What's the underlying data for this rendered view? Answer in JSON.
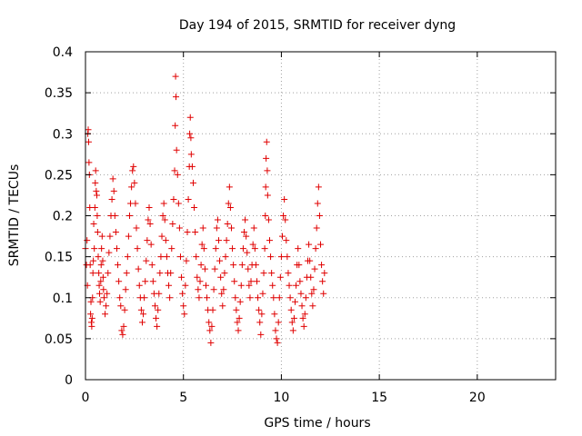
{
  "chart_data": {
    "type": "scatter",
    "title": "Day 194 of 2015, SRMTID for receiver dyng",
    "xlabel": "GPS time / hours",
    "ylabel": "SRMTID / TECUs",
    "xlim": [
      0,
      24
    ],
    "ylim": [
      0,
      0.4
    ],
    "xticks": [
      0,
      5,
      10,
      15,
      20
    ],
    "xtick_labels": [
      "0",
      "5",
      "10",
      "15",
      "20"
    ],
    "yticks": [
      0,
      0.05,
      0.1,
      0.15,
      0.2,
      0.25,
      0.3,
      0.35,
      0.4
    ],
    "ytick_labels": [
      "0",
      "0.05",
      "0.1",
      "0.15",
      "0.2",
      "0.25",
      "0.3",
      "0.35",
      "0.4"
    ],
    "grid": true,
    "marker": "+",
    "color": "#e00000",
    "series": [
      {
        "name": "SRMTID",
        "points": [
          [
            0.0,
            0.16
          ],
          [
            0.05,
            0.14
          ],
          [
            0.08,
            0.17
          ],
          [
            0.1,
            0.115
          ],
          [
            0.12,
            0.3
          ],
          [
            0.14,
            0.305
          ],
          [
            0.16,
            0.29
          ],
          [
            0.18,
            0.265
          ],
          [
            0.2,
            0.25
          ],
          [
            0.22,
            0.21
          ],
          [
            0.24,
            0.14
          ],
          [
            0.26,
            0.08
          ],
          [
            0.28,
            0.095
          ],
          [
            0.3,
            0.07
          ],
          [
            0.32,
            0.065
          ],
          [
            0.34,
            0.075
          ],
          [
            0.36,
            0.1
          ],
          [
            0.38,
            0.13
          ],
          [
            0.4,
            0.145
          ],
          [
            0.42,
            0.19
          ],
          [
            0.45,
            0.16
          ],
          [
            0.48,
            0.21
          ],
          [
            0.5,
            0.24
          ],
          [
            0.52,
            0.255
          ],
          [
            0.55,
            0.23
          ],
          [
            0.58,
            0.225
          ],
          [
            0.6,
            0.2
          ],
          [
            0.62,
            0.18
          ],
          [
            0.65,
            0.15
          ],
          [
            0.68,
            0.13
          ],
          [
            0.7,
            0.115
          ],
          [
            0.72,
            0.105
          ],
          [
            0.75,
            0.095
          ],
          [
            0.78,
            0.12
          ],
          [
            0.8,
            0.14
          ],
          [
            0.82,
            0.16
          ],
          [
            0.85,
            0.175
          ],
          [
            0.88,
            0.145
          ],
          [
            0.9,
            0.125
          ],
          [
            0.92,
            0.11
          ],
          [
            0.95,
            0.1
          ],
          [
            1.0,
            0.08
          ],
          [
            1.05,
            0.09
          ],
          [
            1.1,
            0.105
          ],
          [
            1.15,
            0.13
          ],
          [
            1.2,
            0.155
          ],
          [
            1.25,
            0.175
          ],
          [
            1.3,
            0.2
          ],
          [
            1.35,
            0.22
          ],
          [
            1.4,
            0.245
          ],
          [
            1.45,
            0.23
          ],
          [
            1.5,
            0.2
          ],
          [
            1.55,
            0.18
          ],
          [
            1.6,
            0.16
          ],
          [
            1.65,
            0.14
          ],
          [
            1.7,
            0.12
          ],
          [
            1.75,
            0.1
          ],
          [
            1.8,
            0.09
          ],
          [
            1.85,
            0.06
          ],
          [
            1.9,
            0.055
          ],
          [
            1.95,
            0.065
          ],
          [
            2.0,
            0.085
          ],
          [
            2.05,
            0.11
          ],
          [
            2.1,
            0.13
          ],
          [
            2.15,
            0.15
          ],
          [
            2.2,
            0.175
          ],
          [
            2.25,
            0.2
          ],
          [
            2.3,
            0.215
          ],
          [
            2.35,
            0.235
          ],
          [
            2.4,
            0.255
          ],
          [
            2.45,
            0.26
          ],
          [
            2.5,
            0.24
          ],
          [
            2.55,
            0.215
          ],
          [
            2.6,
            0.185
          ],
          [
            2.65,
            0.16
          ],
          [
            2.7,
            0.135
          ],
          [
            2.75,
            0.115
          ],
          [
            2.8,
            0.1
          ],
          [
            2.85,
            0.085
          ],
          [
            2.9,
            0.07
          ],
          [
            2.95,
            0.08
          ],
          [
            3.0,
            0.1
          ],
          [
            3.05,
            0.12
          ],
          [
            3.1,
            0.145
          ],
          [
            3.15,
            0.17
          ],
          [
            3.2,
            0.195
          ],
          [
            3.25,
            0.21
          ],
          [
            3.3,
            0.19
          ],
          [
            3.35,
            0.165
          ],
          [
            3.4,
            0.14
          ],
          [
            3.45,
            0.12
          ],
          [
            3.5,
            0.105
          ],
          [
            3.55,
            0.09
          ],
          [
            3.6,
            0.075
          ],
          [
            3.65,
            0.065
          ],
          [
            3.7,
            0.085
          ],
          [
            3.75,
            0.105
          ],
          [
            3.8,
            0.13
          ],
          [
            3.85,
            0.15
          ],
          [
            3.9,
            0.175
          ],
          [
            3.95,
            0.2
          ],
          [
            4.0,
            0.215
          ],
          [
            4.05,
            0.195
          ],
          [
            4.1,
            0.17
          ],
          [
            4.15,
            0.15
          ],
          [
            4.2,
            0.13
          ],
          [
            4.25,
            0.115
          ],
          [
            4.3,
            0.1
          ],
          [
            4.35,
            0.13
          ],
          [
            4.4,
            0.16
          ],
          [
            4.45,
            0.19
          ],
          [
            4.5,
            0.22
          ],
          [
            4.55,
            0.255
          ],
          [
            4.58,
            0.31
          ],
          [
            4.6,
            0.37
          ],
          [
            4.62,
            0.345
          ],
          [
            4.65,
            0.28
          ],
          [
            4.7,
            0.25
          ],
          [
            4.75,
            0.215
          ],
          [
            4.8,
            0.185
          ],
          [
            4.85,
            0.15
          ],
          [
            4.9,
            0.125
          ],
          [
            4.95,
            0.105
          ],
          [
            5.0,
            0.09
          ],
          [
            5.05,
            0.08
          ],
          [
            5.1,
            0.115
          ],
          [
            5.15,
            0.145
          ],
          [
            5.2,
            0.18
          ],
          [
            5.25,
            0.22
          ],
          [
            5.3,
            0.26
          ],
          [
            5.32,
            0.3
          ],
          [
            5.35,
            0.32
          ],
          [
            5.38,
            0.295
          ],
          [
            5.4,
            0.275
          ],
          [
            5.45,
            0.26
          ],
          [
            5.5,
            0.24
          ],
          [
            5.55,
            0.21
          ],
          [
            5.6,
            0.18
          ],
          [
            5.65,
            0.15
          ],
          [
            5.7,
            0.125
          ],
          [
            5.75,
            0.11
          ],
          [
            5.8,
            0.1
          ],
          [
            5.85,
            0.12
          ],
          [
            5.9,
            0.14
          ],
          [
            5.95,
            0.165
          ],
          [
            6.0,
            0.185
          ],
          [
            6.05,
            0.16
          ],
          [
            6.1,
            0.135
          ],
          [
            6.15,
            0.115
          ],
          [
            6.2,
            0.1
          ],
          [
            6.25,
            0.085
          ],
          [
            6.3,
            0.07
          ],
          [
            6.35,
            0.06
          ],
          [
            6.4,
            0.045
          ],
          [
            6.45,
            0.065
          ],
          [
            6.5,
            0.085
          ],
          [
            6.55,
            0.11
          ],
          [
            6.6,
            0.135
          ],
          [
            6.65,
            0.16
          ],
          [
            6.7,
            0.185
          ],
          [
            6.75,
            0.195
          ],
          [
            6.8,
            0.17
          ],
          [
            6.85,
            0.145
          ],
          [
            6.9,
            0.125
          ],
          [
            6.95,
            0.105
          ],
          [
            7.0,
            0.09
          ],
          [
            7.05,
            0.11
          ],
          [
            7.1,
            0.13
          ],
          [
            7.15,
            0.15
          ],
          [
            7.2,
            0.17
          ],
          [
            7.25,
            0.19
          ],
          [
            7.3,
            0.215
          ],
          [
            7.35,
            0.235
          ],
          [
            7.4,
            0.21
          ],
          [
            7.45,
            0.185
          ],
          [
            7.5,
            0.16
          ],
          [
            7.55,
            0.14
          ],
          [
            7.6,
            0.12
          ],
          [
            7.65,
            0.1
          ],
          [
            7.7,
            0.085
          ],
          [
            7.75,
            0.07
          ],
          [
            7.8,
            0.06
          ],
          [
            7.85,
            0.075
          ],
          [
            7.9,
            0.095
          ],
          [
            7.95,
            0.115
          ],
          [
            8.0,
            0.14
          ],
          [
            8.05,
            0.16
          ],
          [
            8.1,
            0.18
          ],
          [
            8.15,
            0.195
          ],
          [
            8.2,
            0.175
          ],
          [
            8.25,
            0.155
          ],
          [
            8.3,
            0.135
          ],
          [
            8.35,
            0.115
          ],
          [
            8.4,
            0.1
          ],
          [
            8.45,
            0.12
          ],
          [
            8.5,
            0.14
          ],
          [
            8.55,
            0.165
          ],
          [
            8.6,
            0.185
          ],
          [
            8.65,
            0.16
          ],
          [
            8.7,
            0.14
          ],
          [
            8.75,
            0.12
          ],
          [
            8.8,
            0.1
          ],
          [
            8.85,
            0.085
          ],
          [
            8.9,
            0.07
          ],
          [
            8.95,
            0.055
          ],
          [
            9.0,
            0.08
          ],
          [
            9.05,
            0.105
          ],
          [
            9.1,
            0.13
          ],
          [
            9.15,
            0.16
          ],
          [
            9.18,
            0.2
          ],
          [
            9.2,
            0.235
          ],
          [
            9.22,
            0.27
          ],
          [
            9.25,
            0.29
          ],
          [
            9.28,
            0.255
          ],
          [
            9.3,
            0.225
          ],
          [
            9.35,
            0.195
          ],
          [
            9.4,
            0.17
          ],
          [
            9.45,
            0.15
          ],
          [
            9.5,
            0.13
          ],
          [
            9.55,
            0.115
          ],
          [
            9.6,
            0.1
          ],
          [
            9.65,
            0.08
          ],
          [
            9.7,
            0.06
          ],
          [
            9.75,
            0.05
          ],
          [
            9.8,
            0.045
          ],
          [
            9.85,
            0.07
          ],
          [
            9.9,
            0.1
          ],
          [
            9.95,
            0.125
          ],
          [
            10.0,
            0.15
          ],
          [
            10.05,
            0.175
          ],
          [
            10.1,
            0.2
          ],
          [
            10.15,
            0.22
          ],
          [
            10.2,
            0.195
          ],
          [
            10.25,
            0.17
          ],
          [
            10.3,
            0.15
          ],
          [
            10.35,
            0.13
          ],
          [
            10.4,
            0.115
          ],
          [
            10.45,
            0.1
          ],
          [
            10.5,
            0.085
          ],
          [
            10.55,
            0.07
          ],
          [
            10.6,
            0.06
          ],
          [
            10.65,
            0.075
          ],
          [
            10.7,
            0.095
          ],
          [
            10.75,
            0.115
          ],
          [
            10.8,
            0.14
          ],
          [
            10.85,
            0.16
          ],
          [
            10.9,
            0.14
          ],
          [
            10.95,
            0.12
          ],
          [
            11.0,
            0.105
          ],
          [
            11.05,
            0.09
          ],
          [
            11.1,
            0.075
          ],
          [
            11.15,
            0.065
          ],
          [
            11.2,
            0.08
          ],
          [
            11.25,
            0.1
          ],
          [
            11.3,
            0.125
          ],
          [
            11.35,
            0.145
          ],
          [
            11.4,
            0.165
          ],
          [
            11.45,
            0.145
          ],
          [
            11.5,
            0.125
          ],
          [
            11.55,
            0.105
          ],
          [
            11.6,
            0.09
          ],
          [
            11.65,
            0.11
          ],
          [
            11.7,
            0.135
          ],
          [
            11.75,
            0.16
          ],
          [
            11.8,
            0.185
          ],
          [
            11.85,
            0.215
          ],
          [
            11.9,
            0.235
          ],
          [
            11.95,
            0.2
          ],
          [
            12.0,
            0.165
          ],
          [
            12.05,
            0.14
          ],
          [
            12.1,
            0.12
          ],
          [
            12.15,
            0.105
          ],
          [
            12.2,
            0.13
          ]
        ]
      }
    ]
  }
}
